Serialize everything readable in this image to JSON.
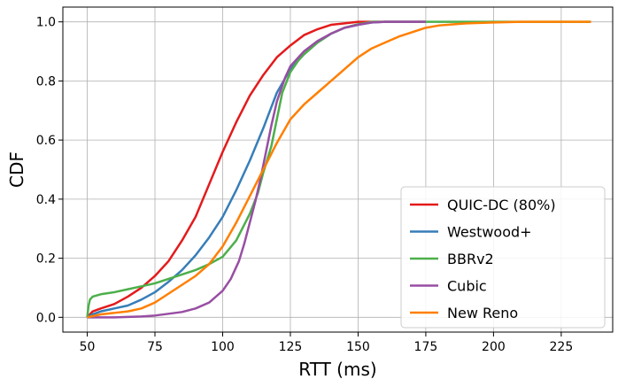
{
  "chart_data": {
    "type": "line",
    "xlabel": "RTT (ms)",
    "ylabel": "CDF",
    "xlim": [
      41,
      244
    ],
    "ylim": [
      -0.05,
      1.05
    ],
    "xticks": [
      50,
      75,
      100,
      125,
      150,
      175,
      200,
      225
    ],
    "yticks": [
      0.0,
      0.2,
      0.4,
      0.6,
      0.8,
      1.0
    ],
    "xtick_labels": [
      "50",
      "75",
      "100",
      "125",
      "150",
      "175",
      "200",
      "225"
    ],
    "ytick_labels": [
      "0.0",
      "0.2",
      "0.4",
      "0.6",
      "0.8",
      "1.0"
    ],
    "grid": true,
    "legend_position": "lower-right",
    "series": [
      {
        "name": "QUIC-DC (80%)",
        "color": "#e41a1c",
        "points": [
          [
            50,
            0
          ],
          [
            52,
            0.02
          ],
          [
            55,
            0.03
          ],
          [
            60,
            0.045
          ],
          [
            65,
            0.07
          ],
          [
            70,
            0.1
          ],
          [
            75,
            0.14
          ],
          [
            80,
            0.19
          ],
          [
            85,
            0.26
          ],
          [
            90,
            0.34
          ],
          [
            95,
            0.45
          ],
          [
            100,
            0.56
          ],
          [
            105,
            0.66
          ],
          [
            110,
            0.75
          ],
          [
            115,
            0.82
          ],
          [
            120,
            0.88
          ],
          [
            125,
            0.92
          ],
          [
            130,
            0.955
          ],
          [
            135,
            0.975
          ],
          [
            140,
            0.99
          ],
          [
            145,
            0.995
          ],
          [
            150,
            1.0
          ],
          [
            175,
            1.0
          ]
        ]
      },
      {
        "name": "Westwood+",
        "color": "#377eb8",
        "points": [
          [
            50,
            0
          ],
          [
            52,
            0.01
          ],
          [
            55,
            0.02
          ],
          [
            60,
            0.03
          ],
          [
            65,
            0.04
          ],
          [
            70,
            0.06
          ],
          [
            75,
            0.085
          ],
          [
            80,
            0.12
          ],
          [
            85,
            0.16
          ],
          [
            90,
            0.21
          ],
          [
            95,
            0.27
          ],
          [
            100,
            0.34
          ],
          [
            105,
            0.43
          ],
          [
            110,
            0.53
          ],
          [
            115,
            0.64
          ],
          [
            120,
            0.76
          ],
          [
            125,
            0.84
          ],
          [
            130,
            0.89
          ],
          [
            135,
            0.93
          ],
          [
            140,
            0.96
          ],
          [
            145,
            0.98
          ],
          [
            150,
            0.99
          ],
          [
            155,
            0.998
          ],
          [
            160,
            1.0
          ],
          [
            175,
            1.0
          ]
        ]
      },
      {
        "name": "BBRv2",
        "color": "#4daf4a",
        "points": [
          [
            50,
            0
          ],
          [
            50.5,
            0.04
          ],
          [
            51,
            0.06
          ],
          [
            52,
            0.07
          ],
          [
            55,
            0.078
          ],
          [
            60,
            0.085
          ],
          [
            65,
            0.095
          ],
          [
            70,
            0.105
          ],
          [
            75,
            0.115
          ],
          [
            80,
            0.13
          ],
          [
            85,
            0.145
          ],
          [
            90,
            0.16
          ],
          [
            95,
            0.18
          ],
          [
            100,
            0.205
          ],
          [
            105,
            0.26
          ],
          [
            110,
            0.35
          ],
          [
            113,
            0.42
          ],
          [
            115,
            0.49
          ],
          [
            118,
            0.58
          ],
          [
            120,
            0.67
          ],
          [
            122,
            0.76
          ],
          [
            125,
            0.83
          ],
          [
            128,
            0.87
          ],
          [
            130,
            0.89
          ],
          [
            135,
            0.93
          ],
          [
            140,
            0.96
          ],
          [
            145,
            0.98
          ],
          [
            150,
            0.992
          ],
          [
            155,
            1.0
          ],
          [
            236,
            1.0
          ]
        ]
      },
      {
        "name": "Cubic",
        "color": "#984ea3",
        "points": [
          [
            50,
            0
          ],
          [
            60,
            0
          ],
          [
            70,
            0.003
          ],
          [
            75,
            0.006
          ],
          [
            80,
            0.012
          ],
          [
            85,
            0.018
          ],
          [
            90,
            0.03
          ],
          [
            95,
            0.05
          ],
          [
            100,
            0.09
          ],
          [
            103,
            0.13
          ],
          [
            106,
            0.19
          ],
          [
            108,
            0.25
          ],
          [
            110,
            0.32
          ],
          [
            112,
            0.39
          ],
          [
            114,
            0.47
          ],
          [
            116,
            0.56
          ],
          [
            118,
            0.65
          ],
          [
            120,
            0.73
          ],
          [
            123,
            0.81
          ],
          [
            125,
            0.85
          ],
          [
            128,
            0.88
          ],
          [
            130,
            0.9
          ],
          [
            135,
            0.935
          ],
          [
            140,
            0.96
          ],
          [
            145,
            0.98
          ],
          [
            150,
            0.99
          ],
          [
            155,
            0.998
          ],
          [
            160,
            1.0
          ],
          [
            175,
            1.0
          ]
        ]
      },
      {
        "name": "New Reno",
        "color": "#ff7f00",
        "points": [
          [
            50,
            0
          ],
          [
            55,
            0.01
          ],
          [
            60,
            0.015
          ],
          [
            65,
            0.02
          ],
          [
            70,
            0.03
          ],
          [
            75,
            0.05
          ],
          [
            80,
            0.08
          ],
          [
            85,
            0.11
          ],
          [
            90,
            0.14
          ],
          [
            95,
            0.18
          ],
          [
            100,
            0.24
          ],
          [
            105,
            0.32
          ],
          [
            110,
            0.41
          ],
          [
            115,
            0.5
          ],
          [
            120,
            0.59
          ],
          [
            125,
            0.67
          ],
          [
            130,
            0.72
          ],
          [
            135,
            0.76
          ],
          [
            140,
            0.8
          ],
          [
            145,
            0.84
          ],
          [
            150,
            0.88
          ],
          [
            155,
            0.91
          ],
          [
            160,
            0.93
          ],
          [
            165,
            0.95
          ],
          [
            170,
            0.965
          ],
          [
            175,
            0.98
          ],
          [
            180,
            0.988
          ],
          [
            190,
            0.995
          ],
          [
            200,
            0.998
          ],
          [
            210,
            1.0
          ],
          [
            236,
            1.0
          ]
        ]
      }
    ]
  }
}
